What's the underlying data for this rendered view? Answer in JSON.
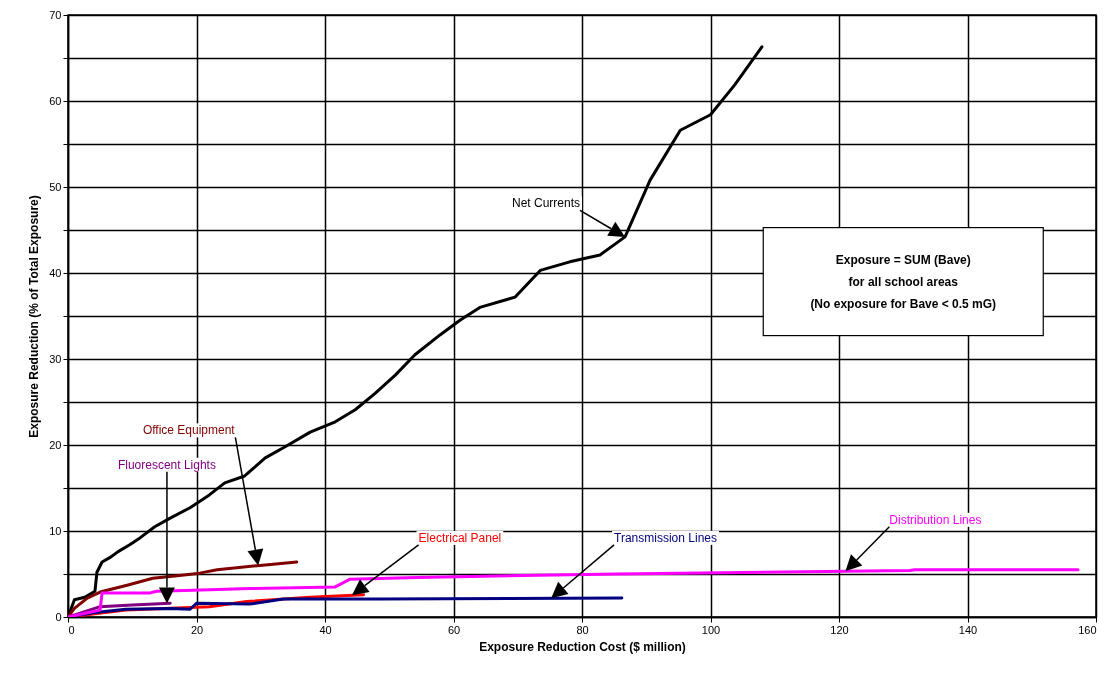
{
  "chart_data": {
    "type": "line",
    "xlabel": "Exposure Reduction Cost ($ million)",
    "ylabel": "Exposure Reduction (% of Total Exposure)",
    "xlim": [
      0,
      160
    ],
    "xticks": [
      0,
      20,
      40,
      60,
      80,
      100,
      120,
      140,
      160
    ],
    "ylim": [
      0,
      70
    ],
    "yticks": [
      0,
      {
        "value": 5,
        "label": null
      },
      10,
      {
        "value": 15,
        "label": null
      },
      20,
      {
        "value": 25,
        "label": null
      },
      30,
      {
        "value": 35,
        "label": null
      },
      40,
      {
        "value": 45,
        "label": null
      },
      50,
      {
        "value": 55,
        "label": null
      },
      60,
      {
        "value": 65,
        "label": null
      },
      70
    ],
    "grid": true,
    "marker": "none",
    "line_style": "solid",
    "series": [
      {
        "name": "Net Currents",
        "color": "#000000",
        "x": [
          0,
          1,
          2.6,
          4.2,
          4.5,
          5.3,
          6.5,
          7.8,
          9.6,
          11.2,
          13.5,
          15.9,
          19,
          22,
          24.4,
          27.5,
          30.7,
          33.8,
          37.7,
          41.6,
          44.7,
          47.8,
          50.9,
          54,
          57.9,
          61,
          64.1,
          69.6,
          73.5,
          78.1,
          82.8,
          86.7,
          90.6,
          95.3,
          100,
          103.8,
          108
        ],
        "values": [
          0,
          2,
          2.3,
          3,
          5.2,
          6.4,
          6.9,
          7.6,
          8.4,
          9.2,
          10.5,
          11.5,
          12.7,
          14.2,
          15.6,
          16.4,
          18.5,
          19.8,
          21.5,
          22.7,
          24.1,
          26,
          28.1,
          30.5,
          32.8,
          34.5,
          36,
          37.2,
          40.3,
          41.3,
          42.1,
          44.2,
          50.8,
          56.6,
          58.4,
          61.9,
          66.3
        ]
      },
      {
        "name": "Office Equipment",
        "color": "#800000",
        "x": [
          0,
          1,
          3,
          5,
          9.2,
          13.2,
          17,
          20.5,
          23.2,
          29.9,
          35.6
        ],
        "values": [
          0,
          1,
          2.2,
          2.9,
          3.7,
          4.5,
          4.8,
          5.1,
          5.5,
          6,
          6.4
        ]
      },
      {
        "name": "Fluorescent Lights",
        "color": "#800080",
        "x": [
          0,
          5,
          10,
          15.9
        ],
        "values": [
          0,
          1.2,
          1.4,
          1.6
        ]
      },
      {
        "name": "Electrical Panel",
        "color": "#ff0000",
        "x": [
          0,
          9,
          22,
          27.8,
          37.7,
          46
        ],
        "values": [
          0,
          0.8,
          1.2,
          1.8,
          2.3,
          2.6
        ]
      },
      {
        "name": "Transmission Lines",
        "color": "#000080",
        "x": [
          0,
          3.9,
          9,
          15.9,
          19,
          20,
          28.3,
          33.5,
          48.5,
          86.2
        ],
        "values": [
          0,
          0.5,
          0.9,
          1,
          0.9,
          1.6,
          1.5,
          2.1,
          2.1,
          2.2
        ]
      },
      {
        "name": "Distribution Lines",
        "color": "#ff00ff",
        "x": [
          0,
          5,
          5.3,
          12.8,
          13.8,
          19.5,
          28.3,
          41.6,
          43.9,
          54.3,
          85.4,
          131,
          131.8,
          157.2
        ],
        "values": [
          0,
          0.8,
          2.8,
          2.8,
          3,
          3.1,
          3.3,
          3.5,
          4.4,
          4.6,
          5,
          5.4,
          5.5,
          5.5
        ]
      }
    ],
    "annotations": [
      "Exposure = SUM (Bave)\nfor all school areas\n(No exposure for Bave < 0.5 mG)"
    ]
  }
}
